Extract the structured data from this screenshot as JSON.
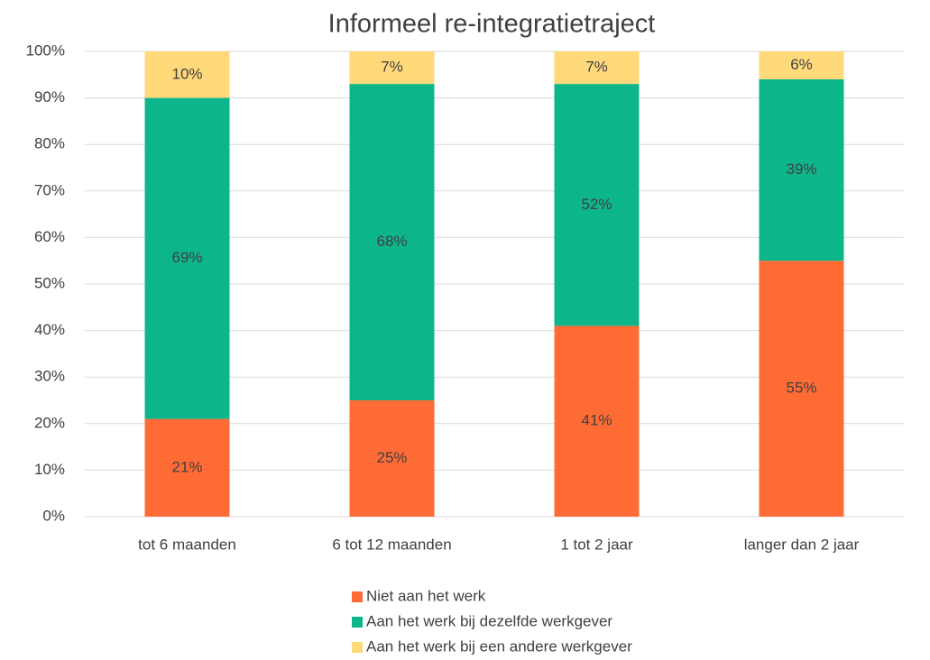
{
  "chart_data": {
    "type": "stacked_bar",
    "title": "Informeel re-integratietraject",
    "categories": [
      "tot 6 maanden",
      "6 tot 12 maanden",
      "1 tot 2 jaar",
      "langer dan 2 jaar"
    ],
    "series": [
      {
        "name": "Niet aan het werk",
        "color": "#ff6b35",
        "values": [
          21,
          25,
          41,
          55
        ],
        "value_labels": [
          "21%",
          "25%",
          "41%",
          "55%"
        ]
      },
      {
        "name": "Aan het werk bij dezelfde werkgever",
        "color": "#0db58a",
        "values": [
          69,
          68,
          52,
          39
        ],
        "value_labels": [
          "69%",
          "68%",
          "52%",
          "39%"
        ]
      },
      {
        "name": "Aan het werk bij een andere werkgever",
        "color": "#ffd97a",
        "values": [
          10,
          7,
          7,
          6
        ],
        "value_labels": [
          "10%",
          "7%",
          "7%",
          "6%"
        ]
      }
    ],
    "ylim": [
      0,
      100
    ],
    "yticks": [
      {
        "value": 0,
        "label": "0%"
      },
      {
        "value": 10,
        "label": "10%"
      },
      {
        "value": 20,
        "label": "20%"
      },
      {
        "value": 30,
        "label": "30%"
      },
      {
        "value": 40,
        "label": "40%"
      },
      {
        "value": 50,
        "label": "50%"
      },
      {
        "value": 60,
        "label": "60%"
      },
      {
        "value": 70,
        "label": "70%"
      },
      {
        "value": 80,
        "label": "80%"
      },
      {
        "value": 90,
        "label": "90%"
      },
      {
        "value": 100,
        "label": "100%"
      }
    ],
    "grid": true,
    "legend": "bottom"
  }
}
